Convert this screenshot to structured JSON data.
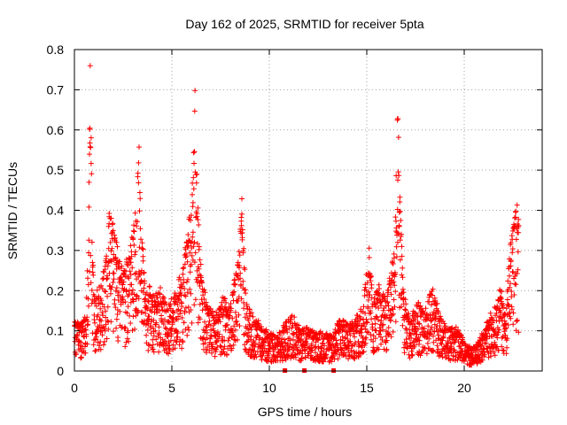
{
  "chart_data": {
    "type": "scatter",
    "title": "Day 162 of 2025, SRMTID for receiver 5pta",
    "xlabel": "GPS time / hours",
    "ylabel": "SRMTID / TECUs",
    "xlim": [
      0,
      24
    ],
    "ylim": [
      0,
      0.8
    ],
    "grid": true,
    "marker": "+",
    "marker_color": "#ff0000",
    "x_ticks": [
      0,
      5,
      10,
      15,
      20
    ],
    "x_tick_labels": [
      "0",
      "5",
      "10",
      "15",
      "20"
    ],
    "y_ticks": [
      0,
      0.1,
      0.2,
      0.3,
      0.4,
      0.5,
      0.6,
      0.7,
      0.8
    ],
    "y_tick_labels": [
      "0",
      "0.1",
      "0.2",
      "0.3",
      "0.4",
      "0.5",
      "0.6",
      "0.7",
      "0.8"
    ],
    "baseline_gaps_x": [
      10.8,
      11.8,
      13.3
    ],
    "envelope_points": [
      [
        0.0,
        0.12
      ],
      [
        0.3,
        0.11
      ],
      [
        0.6,
        0.15
      ],
      [
        0.7,
        0.3
      ],
      [
        0.75,
        0.55
      ],
      [
        0.8,
        0.72
      ],
      [
        0.85,
        0.62
      ],
      [
        0.9,
        0.35
      ],
      [
        1.0,
        0.18
      ],
      [
        1.3,
        0.2
      ],
      [
        1.6,
        0.26
      ],
      [
        1.8,
        0.38
      ],
      [
        2.0,
        0.35
      ],
      [
        2.3,
        0.26
      ],
      [
        2.6,
        0.24
      ],
      [
        2.9,
        0.3
      ],
      [
        3.2,
        0.38
      ],
      [
        3.3,
        0.55
      ],
      [
        3.4,
        0.4
      ],
      [
        3.6,
        0.22
      ],
      [
        4.0,
        0.18
      ],
      [
        4.4,
        0.19
      ],
      [
        4.8,
        0.15
      ],
      [
        5.2,
        0.2
      ],
      [
        5.5,
        0.22
      ],
      [
        5.8,
        0.33
      ],
      [
        6.0,
        0.38
      ],
      [
        6.15,
        0.55
      ],
      [
        6.2,
        0.69
      ],
      [
        6.3,
        0.42
      ],
      [
        6.5,
        0.25
      ],
      [
        6.8,
        0.16
      ],
      [
        7.2,
        0.13
      ],
      [
        7.6,
        0.17
      ],
      [
        8.0,
        0.15
      ],
      [
        8.4,
        0.27
      ],
      [
        8.6,
        0.42
      ],
      [
        8.8,
        0.17
      ],
      [
        9.2,
        0.12
      ],
      [
        9.6,
        0.11
      ],
      [
        10.0,
        0.09
      ],
      [
        10.4,
        0.08
      ],
      [
        10.8,
        0.11
      ],
      [
        11.2,
        0.13
      ],
      [
        11.6,
        0.1
      ],
      [
        12.0,
        0.1
      ],
      [
        12.4,
        0.09
      ],
      [
        12.8,
        0.09
      ],
      [
        13.2,
        0.08
      ],
      [
        13.6,
        0.12
      ],
      [
        14.0,
        0.11
      ],
      [
        14.4,
        0.12
      ],
      [
        14.8,
        0.16
      ],
      [
        15.1,
        0.3
      ],
      [
        15.3,
        0.17
      ],
      [
        15.6,
        0.2
      ],
      [
        16.0,
        0.17
      ],
      [
        16.4,
        0.28
      ],
      [
        16.6,
        0.62
      ],
      [
        16.7,
        0.4
      ],
      [
        16.9,
        0.18
      ],
      [
        17.2,
        0.12
      ],
      [
        17.6,
        0.16
      ],
      [
        18.0,
        0.14
      ],
      [
        18.4,
        0.2
      ],
      [
        18.8,
        0.12
      ],
      [
        19.2,
        0.1
      ],
      [
        19.6,
        0.1
      ],
      [
        20.0,
        0.07
      ],
      [
        20.4,
        0.05
      ],
      [
        20.8,
        0.08
      ],
      [
        21.2,
        0.12
      ],
      [
        21.6,
        0.15
      ],
      [
        21.9,
        0.2
      ],
      [
        22.1,
        0.12
      ],
      [
        22.3,
        0.26
      ],
      [
        22.5,
        0.35
      ],
      [
        22.7,
        0.4
      ],
      [
        22.8,
        0.38
      ]
    ],
    "point_count": 2600,
    "data_range_x": [
      0.0,
      22.8
    ]
  }
}
